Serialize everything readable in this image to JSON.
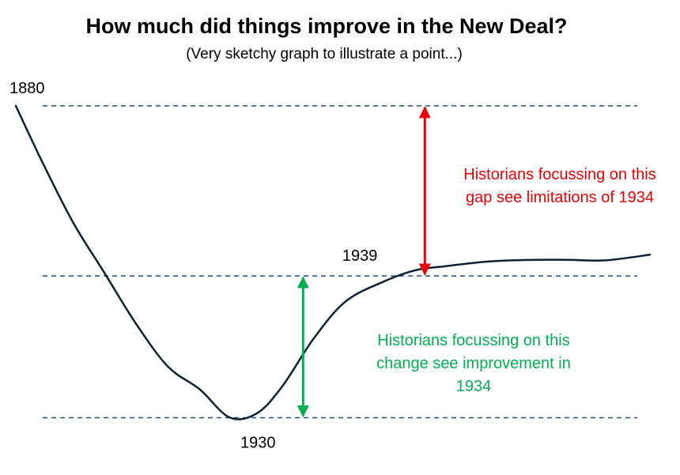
{
  "chart_data": {
    "type": "line",
    "title": "How much did things improve in the New Deal?",
    "subtitle": "(Very sketchy graph to illustrate a point...)",
    "xlabel": "",
    "ylabel": "",
    "grid": false,
    "levels": {
      "top": 100,
      "middle": 40,
      "bottom": -10
    },
    "ylim": [
      -16,
      105
    ],
    "xlim": [
      0,
      100
    ],
    "series": [
      {
        "name": "curve",
        "color": "#0d2136",
        "x": [
          0,
          4,
          9,
          14,
          19,
          24,
          29,
          33.7,
          38,
          42,
          47,
          52,
          58,
          63,
          68,
          74,
          80,
          87,
          93,
          100
        ],
        "y": [
          100,
          81,
          59,
          41,
          23,
          8,
          0,
          -9.9,
          -8.5,
          1,
          18,
          31,
          38,
          42,
          43.5,
          45,
          45.6,
          45.7,
          45.5,
          47.5
        ]
      }
    ],
    "point_labels": [
      {
        "text": "1880",
        "x": 0,
        "y": 100
      },
      {
        "text": "1930",
        "x": 33.7,
        "y": -10
      },
      {
        "text": "1939",
        "x": 58,
        "y": 40
      }
    ],
    "annotations": [
      {
        "id": "limitations",
        "text_lines": [
          "Historians focussing on this",
          "gap see limitations of 1934"
        ],
        "color": "#ee0000",
        "arrow_x": 64.5,
        "from_level": "middle",
        "to_level": "top"
      },
      {
        "id": "improvement",
        "text_lines": [
          "Historians focussing on this",
          "change see improvement in",
          "1934"
        ],
        "color": "#00b050",
        "arrow_x": 45.3,
        "from_level": "bottom",
        "to_level": "middle"
      }
    ],
    "dashed_line_color": "#1f4e79"
  }
}
